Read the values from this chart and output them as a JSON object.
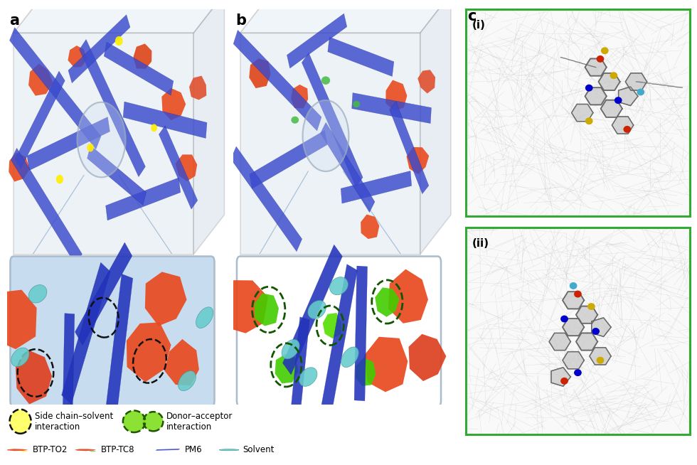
{
  "panel_a_label": "a",
  "panel_b_label": "b",
  "panel_c_label": "c",
  "panel_ci_label": "(i)",
  "panel_cii_label": "(ii)",
  "bg_color": "#ffffff",
  "fig_width": 9.8,
  "fig_height": 6.54,
  "cube_face_color": "#c8d8e8",
  "cube_edge_color": "#999999",
  "rod_color": "#3a4acc",
  "rod_color_dark": "#2233bb",
  "acceptor_color_a": "#e84a1e",
  "acceptor_color_b": "#e05030",
  "yellow_color": "#ffee00",
  "green_color": "#55cc00",
  "teal_color": "#66cccc",
  "zoom_box_a_color": "#c8dcf0",
  "zoom_box_b_color": "#ffffff",
  "legend_yellow": "#ffff55",
  "legend_green": "#77dd11"
}
